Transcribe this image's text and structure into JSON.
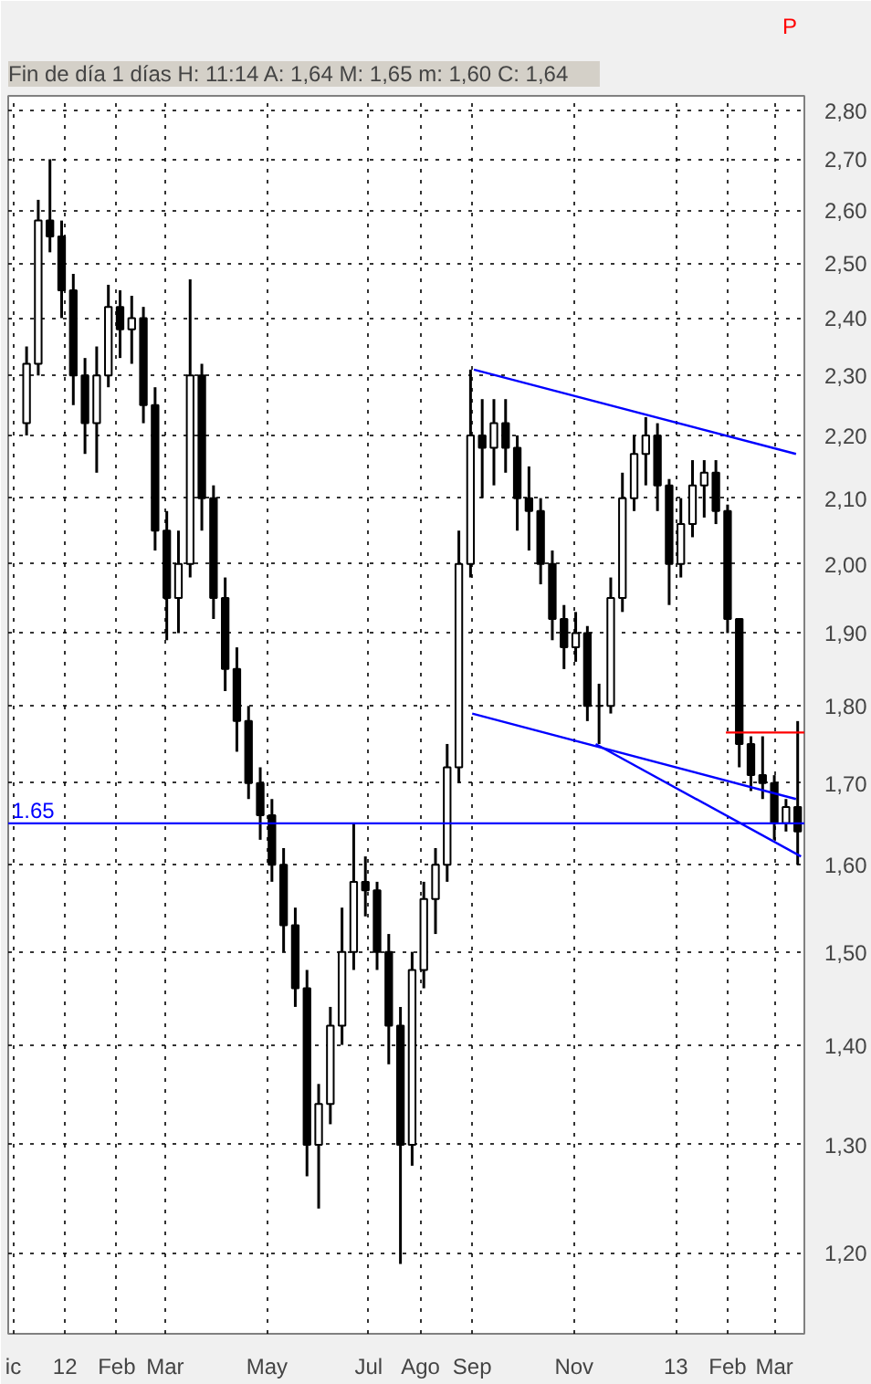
{
  "chart_data": {
    "type": "candlestick",
    "title": "Fin de día 1 días  H: 11:14  A: 1,64  M: 1,65  m: 1,60  C: 1,64",
    "annotations": [
      "P"
    ],
    "x": [
      "2011-12-09",
      "2011-12-16",
      "2011-12-23",
      "2011-12-30",
      "2012-01-06",
      "2012-01-13",
      "2012-01-20",
      "2012-01-27",
      "2012-02-03",
      "2012-02-10",
      "2012-02-17",
      "2012-02-24",
      "2012-03-02",
      "2012-03-09",
      "2012-03-16",
      "2012-03-23",
      "2012-03-30",
      "2012-04-06",
      "2012-04-13",
      "2012-04-20",
      "2012-04-27",
      "2012-05-04",
      "2012-05-11",
      "2012-05-18",
      "2012-05-25",
      "2012-06-01",
      "2012-06-08",
      "2012-06-15",
      "2012-06-22",
      "2012-06-29",
      "2012-07-06",
      "2012-07-13",
      "2012-07-20",
      "2012-07-27",
      "2012-08-03",
      "2012-08-10",
      "2012-08-17",
      "2012-08-24",
      "2012-08-31",
      "2012-09-07",
      "2012-09-14",
      "2012-09-21",
      "2012-09-28",
      "2012-10-05",
      "2012-10-12",
      "2012-10-19",
      "2012-10-26",
      "2012-11-02",
      "2012-11-09",
      "2012-11-16",
      "2012-11-23",
      "2012-11-30",
      "2012-12-07",
      "2012-12-14",
      "2012-12-21",
      "2012-12-28",
      "2013-01-04",
      "2013-01-11",
      "2013-01-18",
      "2013-01-25",
      "2013-02-01",
      "2013-02-08",
      "2013-02-15",
      "2013-02-22",
      "2013-03-01",
      "2013-03-08",
      "2013-03-15"
    ],
    "ohlc": [
      [
        2.22,
        2.35,
        2.2,
        2.32
      ],
      [
        2.32,
        2.62,
        2.3,
        2.58
      ],
      [
        2.58,
        2.7,
        2.52,
        2.55
      ],
      [
        2.55,
        2.58,
        2.4,
        2.45
      ],
      [
        2.45,
        2.48,
        2.25,
        2.3
      ],
      [
        2.3,
        2.33,
        2.17,
        2.22
      ],
      [
        2.22,
        2.35,
        2.14,
        2.3
      ],
      [
        2.3,
        2.46,
        2.28,
        2.42
      ],
      [
        2.42,
        2.45,
        2.33,
        2.38
      ],
      [
        2.38,
        2.44,
        2.32,
        2.4
      ],
      [
        2.4,
        2.42,
        2.22,
        2.25
      ],
      [
        2.25,
        2.28,
        2.02,
        2.05
      ],
      [
        2.05,
        2.08,
        1.89,
        1.95
      ],
      [
        1.95,
        2.05,
        1.9,
        2.0
      ],
      [
        2.0,
        2.47,
        1.98,
        2.3
      ],
      [
        2.3,
        2.32,
        2.05,
        2.1
      ],
      [
        2.1,
        2.12,
        1.92,
        1.95
      ],
      [
        1.95,
        1.98,
        1.82,
        1.85
      ],
      [
        1.85,
        1.88,
        1.74,
        1.78
      ],
      [
        1.78,
        1.8,
        1.68,
        1.7
      ],
      [
        1.7,
        1.72,
        1.63,
        1.66
      ],
      [
        1.66,
        1.68,
        1.58,
        1.6
      ],
      [
        1.6,
        1.62,
        1.5,
        1.53
      ],
      [
        1.53,
        1.55,
        1.44,
        1.46
      ],
      [
        1.46,
        1.48,
        1.27,
        1.3
      ],
      [
        1.3,
        1.36,
        1.24,
        1.34
      ],
      [
        1.34,
        1.44,
        1.32,
        1.42
      ],
      [
        1.42,
        1.55,
        1.4,
        1.5
      ],
      [
        1.5,
        1.65,
        1.48,
        1.58
      ],
      [
        1.58,
        1.61,
        1.54,
        1.57
      ],
      [
        1.57,
        1.58,
        1.48,
        1.5
      ],
      [
        1.5,
        1.52,
        1.38,
        1.42
      ],
      [
        1.42,
        1.44,
        1.19,
        1.3
      ],
      [
        1.3,
        1.5,
        1.28,
        1.48
      ],
      [
        1.48,
        1.58,
        1.46,
        1.56
      ],
      [
        1.56,
        1.62,
        1.52,
        1.6
      ],
      [
        1.6,
        1.75,
        1.58,
        1.72
      ],
      [
        1.72,
        2.05,
        1.7,
        2.0
      ],
      [
        2.0,
        2.31,
        1.98,
        2.2
      ],
      [
        2.2,
        2.26,
        2.1,
        2.18
      ],
      [
        2.18,
        2.26,
        2.12,
        2.22
      ],
      [
        2.22,
        2.26,
        2.14,
        2.18
      ],
      [
        2.18,
        2.2,
        2.05,
        2.1
      ],
      [
        2.1,
        2.15,
        2.02,
        2.08
      ],
      [
        2.08,
        2.1,
        1.97,
        2.0
      ],
      [
        2.0,
        2.02,
        1.89,
        1.92
      ],
      [
        1.92,
        1.94,
        1.85,
        1.88
      ],
      [
        1.88,
        1.93,
        1.86,
        1.9
      ],
      [
        1.9,
        1.91,
        1.78,
        1.8
      ],
      [
        1.8,
        1.83,
        1.75,
        1.8
      ],
      [
        1.8,
        1.98,
        1.79,
        1.95
      ],
      [
        1.95,
        2.14,
        1.93,
        2.1
      ],
      [
        2.1,
        2.2,
        2.08,
        2.17
      ],
      [
        2.17,
        2.23,
        2.12,
        2.2
      ],
      [
        2.2,
        2.22,
        2.08,
        2.12
      ],
      [
        2.12,
        2.13,
        1.94,
        2.0
      ],
      [
        2.0,
        2.1,
        1.98,
        2.06
      ],
      [
        2.06,
        2.16,
        2.04,
        2.12
      ],
      [
        2.12,
        2.16,
        2.07,
        2.14
      ],
      [
        2.14,
        2.16,
        2.06,
        2.08
      ],
      [
        2.08,
        2.09,
        1.9,
        1.92
      ],
      [
        1.92,
        1.92,
        1.72,
        1.75
      ],
      [
        1.75,
        1.76,
        1.69,
        1.71
      ],
      [
        1.71,
        1.76,
        1.68,
        1.7
      ],
      [
        1.7,
        1.71,
        1.63,
        1.65
      ],
      [
        1.65,
        1.68,
        1.64,
        1.67
      ],
      [
        1.67,
        1.78,
        1.6,
        1.64
      ]
    ],
    "series": [
      {
        "type": "line",
        "color": "#0000ff",
        "x": [
          "2012-09-02",
          "2013-03-14"
        ],
        "values": [
          2.31,
          2.17
        ]
      },
      {
        "type": "line",
        "color": "#0000ff",
        "x": [
          "2012-09-01",
          "2013-03-14"
        ],
        "values": [
          1.79,
          1.68
        ]
      },
      {
        "type": "line",
        "color": "#0000ff",
        "x": [
          "2012-11-14",
          "2013-03-17"
        ],
        "values": [
          1.75,
          1.61
        ]
      },
      {
        "type": "line",
        "color": "#ff0000",
        "x": [
          "2013-01-31",
          "2013-03-19"
        ],
        "values": [
          1.765,
          1.765
        ]
      }
    ],
    "ref_lines": [
      {
        "axis": "y",
        "value": 1.65,
        "label": "1.65",
        "color": "#0000ff"
      }
    ],
    "xlim": [
      "2011-11-28",
      "2013-03-19"
    ],
    "xticks": [
      {
        "value": "2011-12-01",
        "label": "ic"
      },
      {
        "value": "2012-01-01",
        "label": "12"
      },
      {
        "value": "2012-02-01",
        "label": "Feb"
      },
      {
        "value": "2012-03-01",
        "label": "Mar"
      },
      {
        "value": "2012-05-01",
        "label": "May"
      },
      {
        "value": "2012-07-01",
        "label": "Jul"
      },
      {
        "value": "2012-08-01",
        "label": "Ago"
      },
      {
        "value": "2012-09-01",
        "label": "Sep"
      },
      {
        "value": "2012-11-01",
        "label": "Nov"
      },
      {
        "value": "2013-01-01",
        "label": "13"
      },
      {
        "value": "2013-02-01",
        "label": "Feb"
      },
      {
        "value": "2013-03-01",
        "label": "Mar"
      }
    ],
    "ylim": [
      1.13,
      2.83
    ],
    "log": true,
    "grid": true,
    "yticks": [
      {
        "value": 1.2,
        "label": "1,20"
      },
      {
        "value": 1.3,
        "label": "1,30"
      },
      {
        "value": 1.4,
        "label": "1,40"
      },
      {
        "value": 1.5,
        "label": "1,50"
      },
      {
        "value": 1.6,
        "label": "1,60"
      },
      {
        "value": 1.7,
        "label": "1,70"
      },
      {
        "value": 1.8,
        "label": "1,80"
      },
      {
        "value": 1.9,
        "label": "1,90"
      },
      {
        "value": 2.0,
        "label": "2,00"
      },
      {
        "value": 2.1,
        "label": "2,10"
      },
      {
        "value": 2.2,
        "label": "2,20"
      },
      {
        "value": 2.3,
        "label": "2,30"
      },
      {
        "value": 2.4,
        "label": "2,40"
      },
      {
        "value": 2.5,
        "label": "2,50"
      },
      {
        "value": 2.6,
        "label": "2,60"
      },
      {
        "value": 2.7,
        "label": "2,70"
      },
      {
        "value": 2.8,
        "label": "2,80"
      }
    ]
  }
}
